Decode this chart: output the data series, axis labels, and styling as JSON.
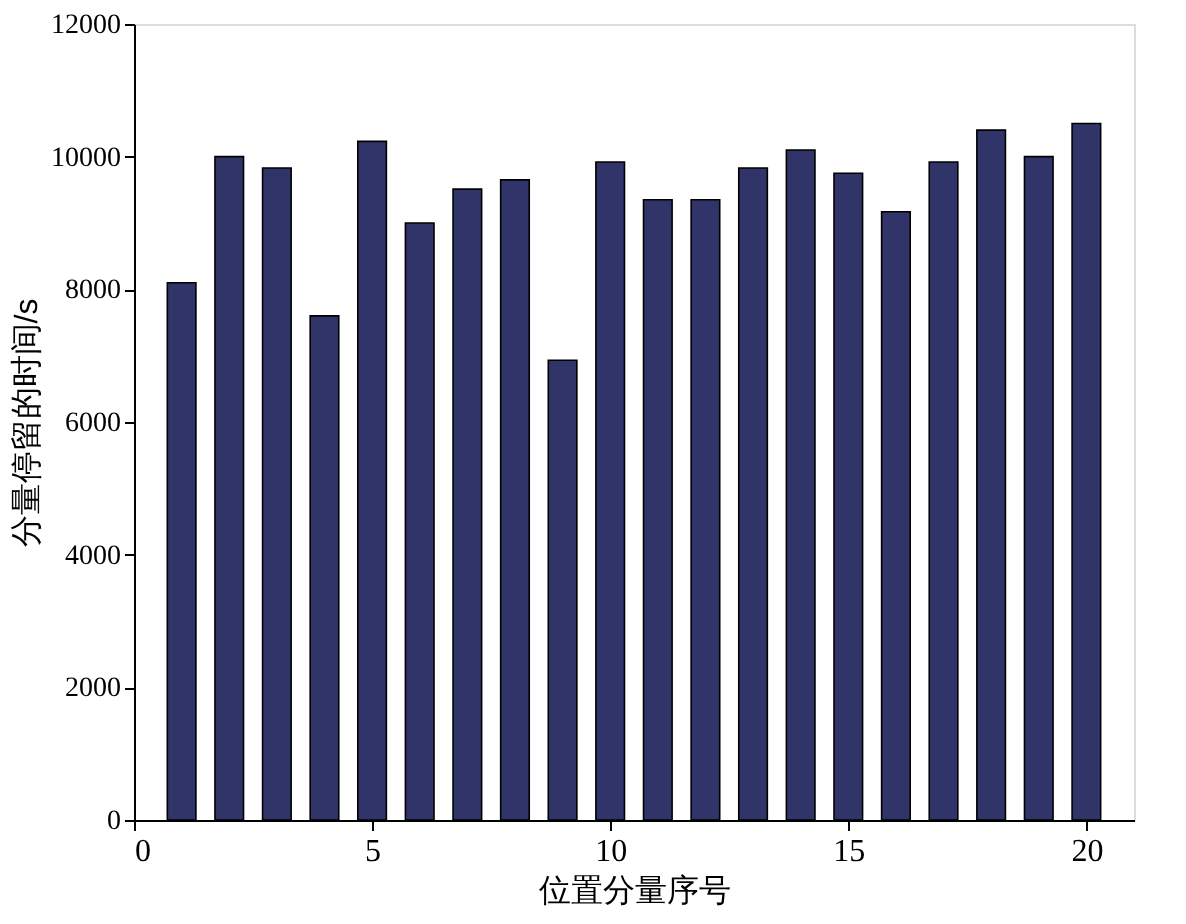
{
  "chart_data": {
    "type": "bar",
    "xlabel": "位置分量序号",
    "ylabel": "分量停留的时间/s",
    "x": [
      1,
      2,
      3,
      4,
      5,
      6,
      7,
      8,
      9,
      10,
      11,
      12,
      13,
      14,
      15,
      16,
      17,
      18,
      19,
      20
    ],
    "values": [
      8100,
      10000,
      9830,
      7600,
      10230,
      9000,
      9510,
      9650,
      6930,
      9920,
      9350,
      9350,
      9830,
      10100,
      9750,
      9170,
      9920,
      10400,
      10000,
      10500
    ],
    "color": "#303468",
    "xlim": [
      0,
      21
    ],
    "xticks": [
      0,
      5,
      10,
      15,
      20
    ],
    "ylim": [
      0,
      12000
    ],
    "yticks": [
      0,
      2000,
      4000,
      6000,
      8000,
      10000,
      12000
    ],
    "grid": false
  }
}
